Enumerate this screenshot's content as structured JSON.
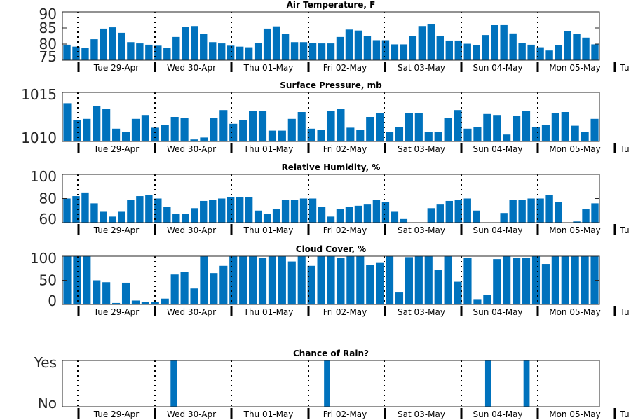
{
  "chart_data": [
    {
      "type": "bar",
      "title": "Air Temperature, F",
      "ylim": [
        75,
        90
      ],
      "yticks": [
        75,
        80,
        85,
        90
      ],
      "values": [
        79.8,
        79.2,
        78.8,
        81.5,
        84.8,
        85.2,
        83.5,
        80.6,
        80.2,
        79.8,
        79.5,
        78.8,
        82.2,
        85.4,
        85.6,
        83.1,
        80.6,
        80.2,
        79.5,
        79.2,
        79.0,
        80.3,
        84.8,
        85.5,
        83.1,
        80.6,
        80.6,
        80.3,
        80.2,
        80.2,
        82.2,
        84.5,
        84.2,
        82.5,
        81.2,
        81.2,
        79.9,
        79.9,
        82.5,
        85.6,
        86.3,
        82.5,
        81.1,
        81.1,
        80.1,
        79.6,
        82.8,
        85.9,
        86.1,
        83.3,
        80.4,
        79.8,
        79.0,
        78.0,
        79.7,
        84.0,
        83.1,
        82.0,
        79.9
      ]
    },
    {
      "type": "bar",
      "title": "Surface Pressure, mb",
      "ylim": [
        1010,
        1015
      ],
      "yticks": [
        1010,
        1015
      ],
      "values": [
        1013.9,
        1012.2,
        1012.3,
        1013.6,
        1013.3,
        1011.3,
        1011.0,
        1012.3,
        1012.7,
        1011.4,
        1011.7,
        1012.5,
        1012.4,
        1010.2,
        1010.4,
        1012.4,
        1013.2,
        1011.8,
        1012.2,
        1013.1,
        1013.1,
        1011.1,
        1011.1,
        1012.3,
        1013.0,
        1011.3,
        1011.2,
        1013.1,
        1013.3,
        1011.4,
        1011.2,
        1012.5,
        1012.9,
        1011.0,
        1011.5,
        1012.9,
        1012.9,
        1011.0,
        1011.0,
        1012.4,
        1013.2,
        1011.3,
        1011.5,
        1012.8,
        1012.7,
        1010.7,
        1012.6,
        1013.1,
        1011.5,
        1011.7,
        1012.9,
        1013.0,
        1011.6,
        1011.0,
        1012.3
      ]
    },
    {
      "type": "bar",
      "title": "Relative Humidity, %",
      "ylim": [
        60,
        100
      ],
      "yticks": [
        60,
        80,
        100
      ],
      "values": [
        80,
        82,
        85,
        76,
        69,
        65,
        69,
        79,
        82,
        83,
        80,
        73,
        67,
        67,
        72,
        78,
        79,
        80,
        81,
        81,
        81,
        70,
        67,
        71,
        79,
        79,
        80,
        80,
        73,
        65,
        71,
        73,
        74,
        75,
        79,
        77,
        69,
        63,
        60,
        60,
        72,
        75,
        78,
        79,
        80,
        70,
        60,
        60,
        68,
        79,
        79,
        80,
        80,
        83,
        77,
        60,
        61,
        71,
        76
      ]
    },
    {
      "type": "bar",
      "title": "Cloud Cover, %",
      "ylim": [
        0,
        100
      ],
      "yticks": [
        0,
        50,
        100
      ],
      "values": [
        100,
        100,
        100,
        50,
        46,
        3,
        45,
        8,
        5,
        5,
        12,
        62,
        68,
        33,
        100,
        65,
        80,
        100,
        100,
        100,
        96,
        100,
        100,
        89,
        100,
        80,
        100,
        100,
        96,
        100,
        100,
        82,
        86,
        100,
        26,
        98,
        100,
        100,
        71,
        100,
        47,
        97,
        11,
        20,
        94,
        100,
        97,
        96,
        100,
        84,
        100,
        100,
        100,
        100,
        100
      ]
    },
    {
      "type": "bar",
      "title": "Chance of Rain?",
      "ylim": [
        0,
        1
      ],
      "yticks": [
        "No",
        "Yes"
      ],
      "rain_days": [
        14,
        34,
        55,
        60
      ]
    }
  ],
  "xaxis": {
    "tick_labels": [
      "Tue 29-Apr",
      "Wed 30-Apr",
      "Thu 01-May",
      "Fri 02-May",
      "Sat 03-May",
      "Sun 04-May",
      "Mon 05-May",
      "Tu"
    ],
    "bar_color": "#0072bd"
  }
}
